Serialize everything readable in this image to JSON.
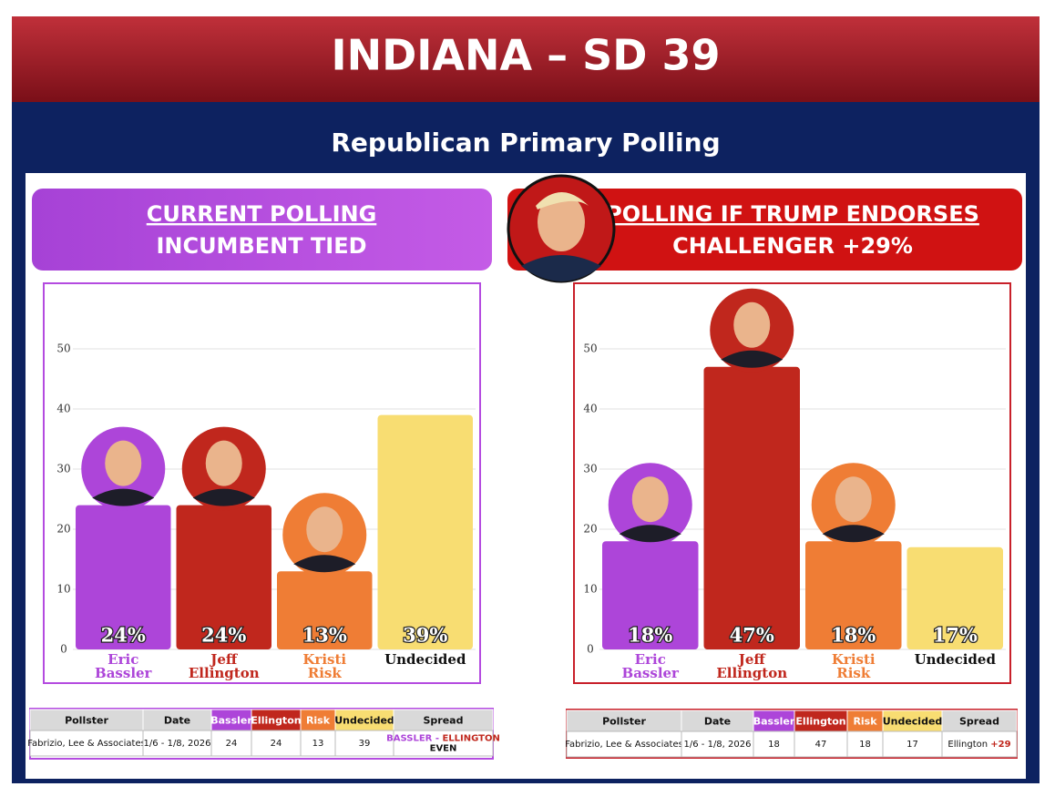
{
  "header": {
    "title": "INDIANA – SD 39",
    "subtitle": "Republican Primary Polling"
  },
  "chart_data": [
    {
      "type": "bar",
      "title": "CURRENT POLLING",
      "subtitle": "INCUMBENT TIED",
      "categories": [
        "Eric Bassler",
        "Jeff Ellington",
        "Kristi Risk",
        "Undecided"
      ],
      "values": [
        24,
        24,
        13,
        39
      ],
      "value_labels": [
        "24%",
        "24%",
        "13%",
        "39%"
      ],
      "colors": [
        "#ad45d9",
        "#c0271d",
        "#ef7d35",
        "#f8dd72"
      ],
      "label_colors": [
        "#ad45d9",
        "#c0271d",
        "#ef7d35",
        "#111111"
      ],
      "ylim": [
        0,
        55
      ],
      "yticks": [
        0,
        10,
        20,
        30,
        40,
        50
      ],
      "grid": true
    },
    {
      "type": "bar",
      "title": "POLLING IF TRUMP ENDORSES",
      "subtitle": "CHALLENGER +29%",
      "categories": [
        "Eric Bassler",
        "Jeff Ellington",
        "Kristi Risk",
        "Undecided"
      ],
      "values": [
        18,
        47,
        18,
        17
      ],
      "value_labels": [
        "18%",
        "47%",
        "18%",
        "17%"
      ],
      "colors": [
        "#ad45d9",
        "#c0271d",
        "#ef7d35",
        "#f8dd72"
      ],
      "label_colors": [
        "#ad45d9",
        "#c0271d",
        "#ef7d35",
        "#111111"
      ],
      "ylim": [
        0,
        55
      ],
      "yticks": [
        0,
        10,
        20,
        30,
        40,
        50
      ],
      "grid": true
    }
  ],
  "tables": [
    {
      "columns": [
        "Pollster",
        "Date",
        "Bassler",
        "Ellington",
        "Risk",
        "Undecided",
        "Spread"
      ],
      "column_colors": [
        "#d9d9d9",
        "#d9d9d9",
        "#ad45d9",
        "#c0271d",
        "#ef7d35",
        "#f8dd72",
        "#d9d9d9"
      ],
      "row": [
        "Fabrizio, Lee & Associates",
        "1/6 - 1/8, 2026",
        24,
        24,
        13,
        39
      ],
      "spread": [
        [
          {
            "text": "BASSLER - ",
            "color": "#ad45d9"
          },
          {
            "text": "ELLINGTON",
            "color": "#c0271d"
          }
        ],
        [
          {
            "text": "EVEN",
            "color": "#111111"
          }
        ]
      ]
    },
    {
      "columns": [
        "Pollster",
        "Date",
        "Bassler",
        "Ellington",
        "Risk",
        "Undecided",
        "Spread"
      ],
      "column_colors": [
        "#d9d9d9",
        "#d9d9d9",
        "#ad45d9",
        "#c0271d",
        "#ef7d35",
        "#f8dd72",
        "#d9d9d9"
      ],
      "row": [
        "Fabrizio, Lee & Associates",
        "1/6 - 1/8, 2026",
        18,
        47,
        18,
        17
      ],
      "spread": [
        [
          {
            "text": "Ellington ",
            "color": "#111111"
          },
          {
            "text": "+29",
            "color": "#c0271d"
          }
        ]
      ]
    }
  ]
}
